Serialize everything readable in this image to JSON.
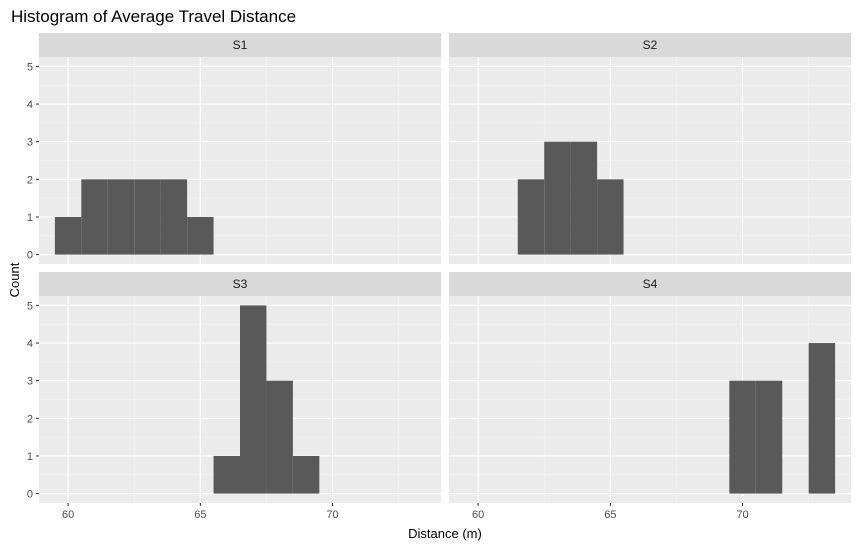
{
  "chart_data": {
    "type": "bar",
    "title": "Histogram of Average Travel Distance",
    "xlabel": "Distance (m)",
    "ylabel": "Count",
    "xlim": [
      58.9,
      74.1
    ],
    "ylim": [
      -0.25,
      5.25
    ],
    "x_ticks": [
      60,
      65,
      70
    ],
    "y_ticks": [
      0,
      1,
      2,
      3,
      4,
      5
    ],
    "bin_width": 1,
    "grid": true,
    "colors": {
      "bar": "#595959",
      "panel_bg": "#ebebeb",
      "strip_bg": "#d9d9d9",
      "grid_major": "#ffffff",
      "grid_minor": "#f5f5f5"
    },
    "panels": [
      {
        "label": "S1",
        "bins": [
          {
            "x": 60,
            "count": 1
          },
          {
            "x": 61,
            "count": 2
          },
          {
            "x": 62,
            "count": 2
          },
          {
            "x": 63,
            "count": 2
          },
          {
            "x": 64,
            "count": 2
          },
          {
            "x": 65,
            "count": 1
          }
        ]
      },
      {
        "label": "S2",
        "bins": [
          {
            "x": 62,
            "count": 2
          },
          {
            "x": 63,
            "count": 3
          },
          {
            "x": 64,
            "count": 3
          },
          {
            "x": 65,
            "count": 2
          }
        ]
      },
      {
        "label": "S3",
        "bins": [
          {
            "x": 66,
            "count": 1
          },
          {
            "x": 67,
            "count": 5
          },
          {
            "x": 68,
            "count": 3
          },
          {
            "x": 69,
            "count": 1
          }
        ]
      },
      {
        "label": "S4",
        "bins": [
          {
            "x": 70,
            "count": 3
          },
          {
            "x": 71,
            "count": 3
          },
          {
            "x": 73,
            "count": 4
          }
        ]
      }
    ]
  }
}
